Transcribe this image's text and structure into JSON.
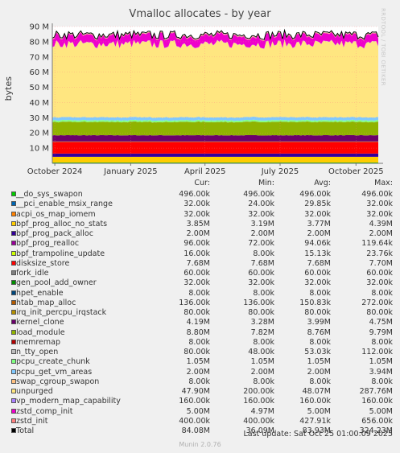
{
  "chart_data": {
    "type": "area",
    "title": "Vmalloc allocates - by year",
    "ylabel": "bytes",
    "watermark": "RRDTOOL / TOBI OETIKER",
    "ylim": [
      0,
      90000000
    ],
    "yticks": [
      {
        "value": 10000000,
        "label": "10 M"
      },
      {
        "value": 20000000,
        "label": "20 M"
      },
      {
        "value": 30000000,
        "label": "30 M"
      },
      {
        "value": 40000000,
        "label": "40 M"
      },
      {
        "value": 50000000,
        "label": "50 M"
      },
      {
        "value": 60000000,
        "label": "60 M"
      },
      {
        "value": 70000000,
        "label": "70 M"
      },
      {
        "value": 80000000,
        "label": "80 M"
      },
      {
        "value": 90000000,
        "label": "90 M"
      }
    ],
    "xrange": [
      "2024-09-28",
      "2025-10-28"
    ],
    "xticks": [
      {
        "date": "2024-10-01",
        "label": "October 2024"
      },
      {
        "date": "2025-01-01",
        "label": "January 2025"
      },
      {
        "date": "2025-04-01",
        "label": "April 2025"
      },
      {
        "date": "2025-07-01",
        "label": "July 2025"
      },
      {
        "date": "2025-10-01",
        "label": "October 2025"
      }
    ],
    "columns": [
      "Cur:",
      "Min:",
      "Avg:",
      "Max:"
    ],
    "series": [
      {
        "name": "__do_sys_swapon",
        "color": "#00cc00",
        "stats": [
          "496.00k",
          "496.00k",
          "496.00k",
          "496.00k"
        ],
        "avg": 496000
      },
      {
        "name": "__pci_enable_msix_range",
        "color": "#0066b3",
        "stats": [
          "32.00k",
          "24.00k",
          "29.85k",
          "32.00k"
        ],
        "avg": 29850
      },
      {
        "name": "acpi_os_map_iomem",
        "color": "#ff8000",
        "stats": [
          "32.00k",
          "32.00k",
          "32.00k",
          "32.00k"
        ],
        "avg": 32000
      },
      {
        "name": "bpf_prog_alloc_no_stats",
        "color": "#ffcc00",
        "stats": [
          "3.85M",
          "3.19M",
          "3.77M",
          "4.39M"
        ],
        "avg": 3770000
      },
      {
        "name": "bpf_prog_pack_alloc",
        "color": "#330099",
        "stats": [
          "2.00M",
          "2.00M",
          "2.00M",
          "2.00M"
        ],
        "avg": 2000000
      },
      {
        "name": "bpf_prog_realloc",
        "color": "#990099",
        "stats": [
          "96.00k",
          "72.00k",
          "94.06k",
          "119.64k"
        ],
        "avg": 94060
      },
      {
        "name": "bpf_trampoline_update",
        "color": "#ccff00",
        "stats": [
          "16.00k",
          "8.00k",
          "15.13k",
          "23.76k"
        ],
        "avg": 15130
      },
      {
        "name": "disksize_store",
        "color": "#ff0000",
        "stats": [
          "7.68M",
          "7.68M",
          "7.68M",
          "7.70M"
        ],
        "avg": 7680000
      },
      {
        "name": "fork_idle",
        "color": "#808080",
        "stats": [
          "60.00k",
          "60.00k",
          "60.00k",
          "60.00k"
        ],
        "avg": 60000
      },
      {
        "name": "gen_pool_add_owner",
        "color": "#008f00",
        "stats": [
          "32.00k",
          "32.00k",
          "32.00k",
          "32.00k"
        ],
        "avg": 32000
      },
      {
        "name": "hpet_enable",
        "color": "#00487d",
        "stats": [
          "8.00k",
          "8.00k",
          "8.00k",
          "8.00k"
        ],
        "avg": 8000
      },
      {
        "name": "htab_map_alloc",
        "color": "#b35a00",
        "stats": [
          "136.00k",
          "136.00k",
          "150.83k",
          "272.00k"
        ],
        "avg": 150830
      },
      {
        "name": "irq_init_percpu_irqstack",
        "color": "#b38f00",
        "stats": [
          "80.00k",
          "80.00k",
          "80.00k",
          "80.00k"
        ],
        "avg": 80000
      },
      {
        "name": "kernel_clone",
        "color": "#6b006b",
        "stats": [
          "4.19M",
          "3.28M",
          "3.99M",
          "4.75M"
        ],
        "avg": 3990000
      },
      {
        "name": "load_module",
        "color": "#8fb300",
        "stats": [
          "8.80M",
          "7.82M",
          "8.76M",
          "9.79M"
        ],
        "avg": 8760000
      },
      {
        "name": "memremap",
        "color": "#b30000",
        "stats": [
          "8.00k",
          "8.00k",
          "8.00k",
          "8.00k"
        ],
        "avg": 8000
      },
      {
        "name": "n_tty_open",
        "color": "#bebebe",
        "stats": [
          "80.00k",
          "48.00k",
          "53.03k",
          "112.00k"
        ],
        "avg": 53030
      },
      {
        "name": "pcpu_create_chunk",
        "color": "#80ff80",
        "stats": [
          "1.05M",
          "1.05M",
          "1.05M",
          "1.05M"
        ],
        "avg": 1050000
      },
      {
        "name": "pcpu_get_vm_areas",
        "color": "#80c9ff",
        "stats": [
          "2.00M",
          "2.00M",
          "2.00M",
          "3.94M"
        ],
        "avg": 2000000
      },
      {
        "name": "swap_cgroup_swapon",
        "color": "#ffc080",
        "stats": [
          "8.00k",
          "8.00k",
          "8.00k",
          "8.00k"
        ],
        "avg": 8000
      },
      {
        "name": "unpurged",
        "color": "#ffe680",
        "stats": [
          "47.90M",
          "200.00k",
          "48.07M",
          "287.76M"
        ],
        "avg": 48070000
      },
      {
        "name": "vp_modern_map_capability",
        "color": "#aa80ff",
        "stats": [
          "160.00k",
          "160.00k",
          "160.00k",
          "160.00k"
        ],
        "avg": 160000
      },
      {
        "name": "zstd_comp_init",
        "color": "#ee00cc",
        "stats": [
          "5.00M",
          "4.97M",
          "5.00M",
          "5.00M"
        ],
        "avg": 5000000
      },
      {
        "name": "zstd_init",
        "color": "#ff8080",
        "stats": [
          "400.00k",
          "400.00k",
          "427.91k",
          "656.00k"
        ],
        "avg": 427910
      }
    ],
    "total": {
      "name": "Total",
      "color": "#000000",
      "stats": [
        "84.08M",
        "36.09M",
        "83.93M",
        "324.23M"
      ]
    },
    "last_update": "Last update: Sat Oct 25 01:00:09 2025",
    "footer": "Munin 2.0.76"
  }
}
